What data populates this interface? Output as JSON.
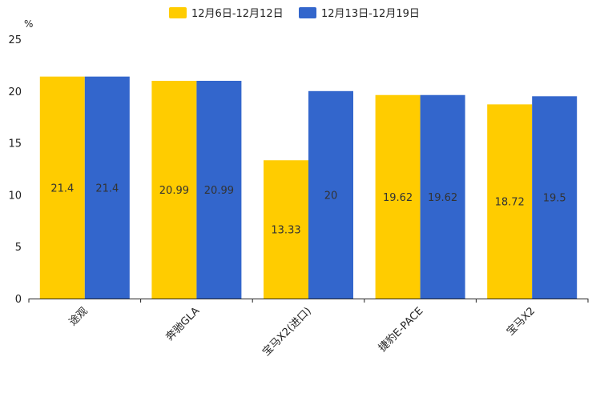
{
  "chart_data": {
    "type": "bar",
    "title": "",
    "xlabel": "",
    "ylabel": "%",
    "ylim": [
      0,
      25
    ],
    "yticks": [
      0,
      5,
      10,
      15,
      20,
      25
    ],
    "grid": false,
    "legend_position": "top-center",
    "categories": [
      "途观",
      "奔驰GLA",
      "宝马X2(进口)",
      "捷豹E-PACE",
      "宝马X2"
    ],
    "series": [
      {
        "name": "12月6日-12月12日",
        "color": "#ffcc00",
        "values": [
          21.4,
          20.99,
          13.33,
          19.62,
          18.72
        ],
        "labels": [
          "21.4",
          "20.99",
          "13.33",
          "19.62",
          "18.72"
        ]
      },
      {
        "name": "12月13日-12月19日",
        "color": "#3366cc",
        "values": [
          21.4,
          20.99,
          20,
          19.62,
          19.5
        ],
        "labels": [
          "21.4",
          "20.99",
          "20",
          "19.62",
          "19.5"
        ]
      }
    ]
  }
}
